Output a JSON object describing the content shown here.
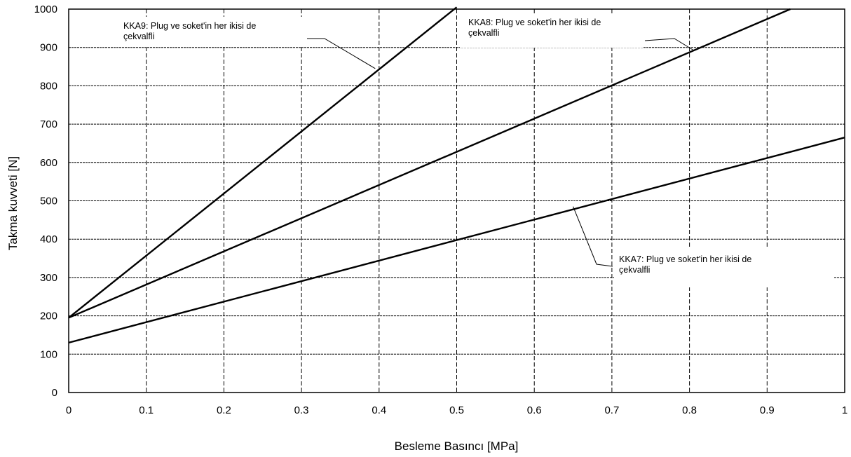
{
  "chart_data": {
    "type": "line",
    "xlabel": "Besleme Basıncı [MPa]",
    "ylabel": "Takma kuvveti [N]",
    "xlim": [
      0,
      1
    ],
    "ylim": [
      0,
      1000
    ],
    "x_ticks": [
      "0",
      "0.1",
      "0.2",
      "0.3",
      "0.4",
      "0.5",
      "0.6",
      "0.7",
      "0.8",
      "0.9",
      "1"
    ],
    "y_ticks": [
      "0",
      "100",
      "200",
      "300",
      "400",
      "500",
      "600",
      "700",
      "800",
      "900",
      "1000"
    ],
    "grid": true,
    "series": [
      {
        "name": "KKA9",
        "x": [
          0,
          0.5
        ],
        "y": [
          195,
          1005
        ]
      },
      {
        "name": "KKA8",
        "x": [
          0,
          0.93
        ],
        "y": [
          195,
          1000
        ]
      },
      {
        "name": "KKA7",
        "x": [
          0,
          1.0
        ],
        "y": [
          130,
          665
        ]
      }
    ],
    "annotations": [
      {
        "series": "KKA9",
        "line1": "KKA9: Plug ve soket'in her ikisi de",
        "line2": "çekvalfli",
        "point": [
          0.395,
          845
        ]
      },
      {
        "series": "KKA8",
        "line1": "KKA8: Plug ve soket'in her ikisi de",
        "line2": "çekvalfli",
        "point": [
          0.805,
          893
        ]
      },
      {
        "series": "KKA7",
        "line1": "KKA7: Plug ve soket'in her ikisi de",
        "line2": "çekvalfli",
        "point": [
          0.65,
          485
        ]
      }
    ]
  }
}
